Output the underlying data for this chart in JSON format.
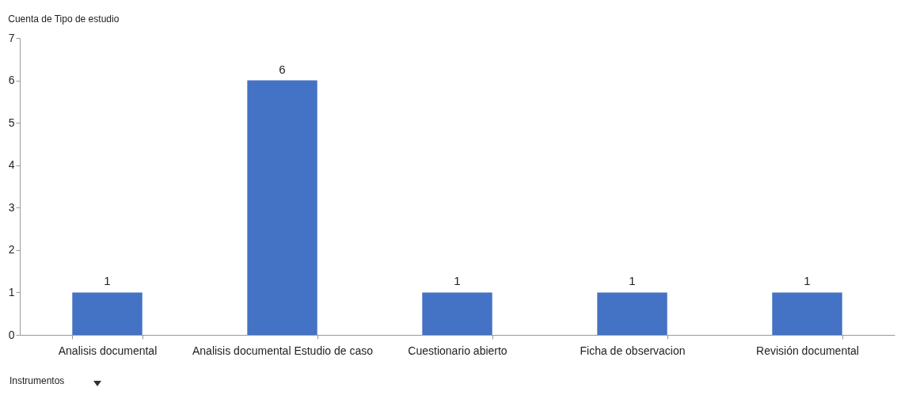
{
  "chart_data": {
    "type": "bar",
    "title": "Cuenta de Tipo de estudio",
    "annotations": [
      "Instrumentos"
    ],
    "categories": [
      "Analisis documental",
      "Analisis documental Estudio de caso",
      "Cuestionario abierto",
      "Ficha de observacion",
      "Revisión documental"
    ],
    "values": [
      1,
      6,
      1,
      1,
      1
    ],
    "color": "#4472c4",
    "ylim": [
      0,
      7
    ],
    "yticks": [
      0,
      1,
      2,
      3,
      4,
      5,
      6,
      7
    ],
    "grid": false,
    "data_labels": true
  }
}
